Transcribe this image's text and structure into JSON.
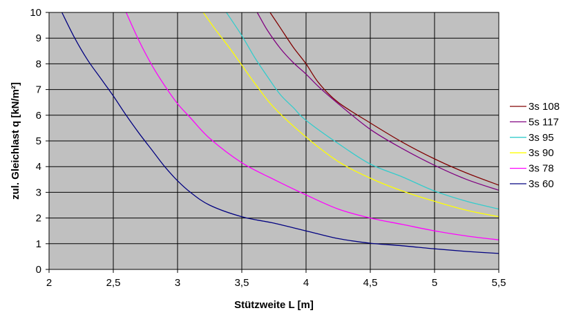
{
  "chart_data": {
    "type": "line",
    "xlabel": "Stützweite L [m]",
    "ylabel": "zul. Gleichlast q [kN/m²]",
    "xlim": [
      2,
      5.5
    ],
    "ylim": [
      0,
      10
    ],
    "xticks": [
      "2",
      "2,5",
      "3",
      "3,5",
      "4",
      "4,5",
      "5",
      "5,5"
    ],
    "yticks": [
      "0",
      "1",
      "2",
      "3",
      "4",
      "5",
      "6",
      "7",
      "8",
      "9",
      "10"
    ],
    "grid": true,
    "plot_background": "#c0c0c0",
    "legend_position": "right",
    "series": [
      {
        "name": "3s 108",
        "color": "#800000",
        "x": [
          3.72,
          3.8,
          3.9,
          4.0,
          4.1,
          4.25,
          4.5,
          4.75,
          5.0,
          5.25,
          5.5
        ],
        "y": [
          10,
          9.4,
          8.65,
          8.0,
          7.25,
          6.5,
          5.7,
          4.95,
          4.3,
          3.75,
          3.28
        ]
      },
      {
        "name": "5s 117",
        "color": "#800080",
        "x": [
          3.62,
          3.7,
          3.8,
          3.9,
          4.0,
          4.1,
          4.25,
          4.5,
          4.75,
          5.0,
          5.25,
          5.5
        ],
        "y": [
          10,
          9.3,
          8.6,
          8.05,
          7.6,
          7.1,
          6.45,
          5.45,
          4.7,
          4.05,
          3.5,
          3.08
        ]
      },
      {
        "name": "3s 95",
        "color": "#33cccc",
        "x": [
          3.38,
          3.5,
          3.6,
          3.7,
          3.8,
          3.9,
          4.0,
          4.25,
          4.5,
          4.75,
          5.0,
          5.25,
          5.5
        ],
        "y": [
          10,
          9.1,
          8.25,
          7.5,
          6.8,
          6.3,
          5.8,
          4.9,
          4.1,
          3.6,
          3.05,
          2.65,
          2.35
        ]
      },
      {
        "name": "3s 90",
        "color": "#ffff00",
        "x": [
          3.2,
          3.3,
          3.4,
          3.5,
          3.6,
          3.75,
          4.0,
          4.25,
          4.5,
          4.75,
          5.0,
          5.25,
          5.5
        ],
        "y": [
          10,
          9.3,
          8.65,
          7.95,
          7.25,
          6.3,
          5.15,
          4.2,
          3.55,
          3.05,
          2.65,
          2.3,
          2.05
        ]
      },
      {
        "name": "3s 78",
        "color": "#ff00ff",
        "x": [
          2.6,
          2.7,
          2.8,
          2.9,
          3.0,
          3.1,
          3.25,
          3.5,
          3.75,
          4.0,
          4.25,
          4.5,
          4.75,
          5.0,
          5.25,
          5.5
        ],
        "y": [
          10,
          8.9,
          7.95,
          7.15,
          6.45,
          5.9,
          5.1,
          4.15,
          3.5,
          2.9,
          2.35,
          2.0,
          1.75,
          1.5,
          1.3,
          1.15
        ]
      },
      {
        "name": "3s 60",
        "color": "#000080",
        "x": [
          2.1,
          2.2,
          2.3,
          2.4,
          2.5,
          2.6,
          2.7,
          2.8,
          2.9,
          3.0,
          3.1,
          3.25,
          3.5,
          3.75,
          4.0,
          4.25,
          4.5,
          4.75,
          5.0,
          5.25,
          5.5
        ],
        "y": [
          10,
          9.0,
          8.15,
          7.45,
          6.75,
          6.0,
          5.3,
          4.65,
          4.0,
          3.45,
          3.0,
          2.5,
          2.05,
          1.8,
          1.5,
          1.2,
          1.02,
          0.92,
          0.8,
          0.7,
          0.62
        ]
      }
    ]
  }
}
